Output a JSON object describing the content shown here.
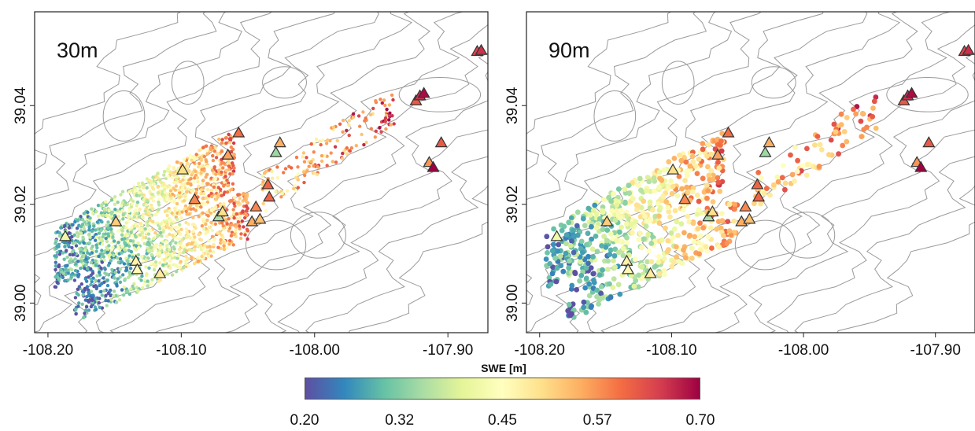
{
  "panels": [
    {
      "label": "30m"
    },
    {
      "label": "90m"
    }
  ],
  "map_data": {
    "x_ticks": [
      "-108.20",
      "-108.10",
      "-108.00",
      "-107.90"
    ],
    "x_tick_values": [
      -108.2,
      -108.1,
      -108.0,
      -107.9
    ],
    "y_ticks": [
      "39.00",
      "39.02",
      "39.04"
    ],
    "y_tick_values": [
      39.0,
      39.02,
      39.04
    ],
    "x_range": [
      -108.21,
      -107.87
    ],
    "y_range": [
      38.994,
      39.059
    ],
    "contour_color": "#9a9a9a",
    "swaths": [
      {
        "lon": [
          -108.195,
          -108.06
        ],
        "lat": [
          39.009,
          39.029
        ],
        "width": 0.006
      },
      {
        "lon": [
          -108.18,
          -108.05
        ],
        "lat": [
          39.001,
          39.018
        ],
        "width": 0.005
      },
      {
        "lon": [
          -108.04,
          -107.94
        ],
        "lat": [
          39.022,
          39.04
        ],
        "width": 0.004
      }
    ],
    "stations": [
      {
        "lon": -108.187,
        "lat": 39.0135,
        "swe": 0.42
      },
      {
        "lon": -108.149,
        "lat": 39.0165,
        "swe": 0.52
      },
      {
        "lon": -108.134,
        "lat": 39.0085,
        "swe": 0.47
      },
      {
        "lon": -108.133,
        "lat": 39.0068,
        "swe": 0.46
      },
      {
        "lon": -108.116,
        "lat": 39.006,
        "swe": 0.48
      },
      {
        "lon": -108.099,
        "lat": 39.027,
        "swe": 0.5
      },
      {
        "lon": -108.09,
        "lat": 39.021,
        "swe": 0.58
      },
      {
        "lon": -108.072,
        "lat": 39.0175,
        "swe": 0.35
      },
      {
        "lon": -108.069,
        "lat": 39.0185,
        "swe": 0.5
      },
      {
        "lon": -108.065,
        "lat": 39.03,
        "swe": 0.56
      },
      {
        "lon": -108.057,
        "lat": 39.0345,
        "swe": 0.6
      },
      {
        "lon": -108.047,
        "lat": 39.0165,
        "swe": 0.55
      },
      {
        "lon": -108.044,
        "lat": 39.0195,
        "swe": 0.58
      },
      {
        "lon": -108.041,
        "lat": 39.017,
        "swe": 0.53
      },
      {
        "lon": -108.035,
        "lat": 39.024,
        "swe": 0.61
      },
      {
        "lon": -108.034,
        "lat": 39.0215,
        "swe": 0.61
      },
      {
        "lon": -108.029,
        "lat": 39.0305,
        "swe": 0.34
      },
      {
        "lon": -108.026,
        "lat": 39.0325,
        "swe": 0.55
      },
      {
        "lon": -107.924,
        "lat": 39.041,
        "swe": 0.62
      },
      {
        "lon": -107.921,
        "lat": 39.042,
        "swe": 0.66
      },
      {
        "lon": -107.918,
        "lat": 39.0425,
        "swe": 0.69
      },
      {
        "lon": -107.914,
        "lat": 39.0285,
        "swe": 0.57
      },
      {
        "lon": -107.911,
        "lat": 39.0275,
        "swe": 0.7
      },
      {
        "lon": -107.905,
        "lat": 39.0325,
        "swe": 0.62
      },
      {
        "lon": -107.878,
        "lat": 39.051,
        "swe": 0.64
      },
      {
        "lon": -107.875,
        "lat": 39.0512,
        "swe": 0.66
      }
    ]
  },
  "colorbar": {
    "title": "SWE [m]",
    "min": 0.2,
    "max": 0.7,
    "tick_labels": [
      "0.20",
      "0.32",
      "0.45",
      "0.57",
      "0.70"
    ],
    "tick_values": [
      0.2,
      0.32,
      0.45,
      0.57,
      0.7
    ],
    "colors": [
      "#5e4fa2",
      "#3288bd",
      "#66c2a5",
      "#abdda4",
      "#e6f598",
      "#ffffbf",
      "#fee08b",
      "#fdae61",
      "#f46d43",
      "#d53e4f",
      "#9e0142"
    ]
  }
}
